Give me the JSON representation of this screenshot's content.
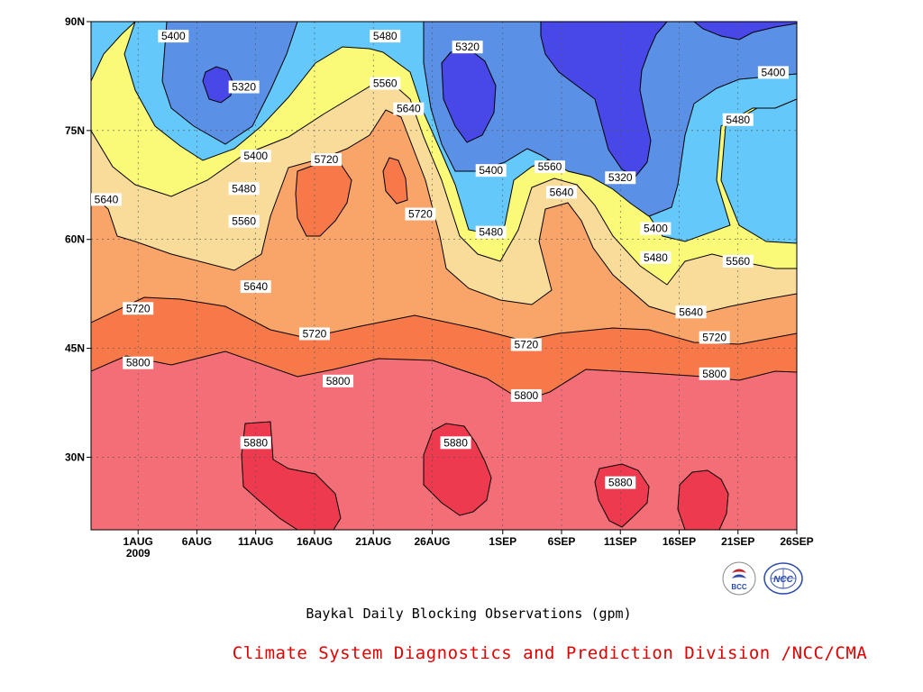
{
  "caption": {
    "title": "Baykal Daily Blocking Observations (gpm)",
    "org": "Climate System Diagnostics and Prediction Division /NCC/CMA"
  },
  "logos": [
    {
      "name": "bcc-logo",
      "text": "BCC"
    },
    {
      "name": "ncc-logo",
      "text": "NCC"
    }
  ],
  "chart_data": {
    "type": "heatmap",
    "title": "Baykal Daily Blocking Observations (gpm)",
    "xlabel": "",
    "ylabel": "",
    "x_range": [
      "2009-07-28",
      "2009-09-26"
    ],
    "y_range": [
      20,
      90
    ],
    "x_ticks": [
      {
        "date": "2009-08-01",
        "label": "1AUG",
        "sublabel": "2009"
      },
      {
        "date": "2009-08-06",
        "label": "6AUG"
      },
      {
        "date": "2009-08-11",
        "label": "11AUG"
      },
      {
        "date": "2009-08-16",
        "label": "16AUG"
      },
      {
        "date": "2009-08-21",
        "label": "21AUG"
      },
      {
        "date": "2009-08-26",
        "label": "26AUG"
      },
      {
        "date": "2009-09-01",
        "label": "1SEP"
      },
      {
        "date": "2009-09-06",
        "label": "6SEP"
      },
      {
        "date": "2009-09-11",
        "label": "11SEP"
      },
      {
        "date": "2009-09-16",
        "label": "16SEP"
      },
      {
        "date": "2009-09-21",
        "label": "21SEP"
      },
      {
        "date": "2009-09-26",
        "label": "26SEP"
      }
    ],
    "y_ticks": [
      {
        "value": 30,
        "label": "30N"
      },
      {
        "value": 45,
        "label": "45N"
      },
      {
        "value": 60,
        "label": "60N"
      },
      {
        "value": 75,
        "label": "75N"
      },
      {
        "value": 90,
        "label": "90N"
      }
    ],
    "grid": true,
    "contour_levels": [
      5320,
      5400,
      5480,
      5560,
      5640,
      5720,
      5800,
      5880
    ],
    "colors": {
      "below_5320": "#4848e8",
      "5320_5400": "#5a90e6",
      "5400_5480": "#64c8fa",
      "5480_5560": "#fafa78",
      "5560_5640": "#fadc9a",
      "5640_5720": "#f9a468",
      "5720_5800": "#f77848",
      "5800_5880": "#f46e78",
      "above_5880": "#ee3a4e"
    },
    "contour_labels": [
      {
        "date": "2009-08-04",
        "lat": 88.0,
        "text": "5400"
      },
      {
        "date": "2009-08-10",
        "lat": 81.0,
        "text": "5320"
      },
      {
        "date": "2009-08-11",
        "lat": 71.5,
        "text": "5400"
      },
      {
        "date": "2009-08-10",
        "lat": 67.0,
        "text": "5480"
      },
      {
        "date": "2009-08-10",
        "lat": 62.5,
        "text": "5560"
      },
      {
        "date": "2009-08-11",
        "lat": 53.5,
        "text": "5640"
      },
      {
        "date": "2009-07-28",
        "lat": 65.5,
        "text": "5640"
      },
      {
        "date": "2009-08-01",
        "lat": 50.5,
        "text": "5720"
      },
      {
        "date": "2009-08-01",
        "lat": 43.0,
        "text": "5800"
      },
      {
        "date": "2009-08-11",
        "lat": 32.0,
        "text": "5880"
      },
      {
        "date": "2009-08-16",
        "lat": 47.0,
        "text": "5720"
      },
      {
        "date": "2009-08-18",
        "lat": 40.5,
        "text": "5800"
      },
      {
        "date": "2009-08-17",
        "lat": 71.0,
        "text": "5720"
      },
      {
        "date": "2009-08-22",
        "lat": 88.0,
        "text": "5480"
      },
      {
        "date": "2009-08-22",
        "lat": 81.5,
        "text": "5560"
      },
      {
        "date": "2009-08-24",
        "lat": 78.0,
        "text": "5640"
      },
      {
        "date": "2009-08-25",
        "lat": 63.5,
        "text": "5720"
      },
      {
        "date": "2009-08-29",
        "lat": 86.5,
        "text": "5320"
      },
      {
        "date": "2009-08-31",
        "lat": 69.5,
        "text": "5400"
      },
      {
        "date": "2009-08-31",
        "lat": 61.0,
        "text": "5480"
      },
      {
        "date": "2009-08-28",
        "lat": 32.0,
        "text": "5880"
      },
      {
        "date": "2009-09-03",
        "lat": 45.5,
        "text": "5720"
      },
      {
        "date": "2009-09-03",
        "lat": 38.5,
        "text": "5800"
      },
      {
        "date": "2009-09-05",
        "lat": 70.0,
        "text": "5560"
      },
      {
        "date": "2009-09-06",
        "lat": 66.5,
        "text": "5640"
      },
      {
        "date": "2009-09-11",
        "lat": 68.5,
        "text": "5320"
      },
      {
        "date": "2009-09-14",
        "lat": 61.5,
        "text": "5400"
      },
      {
        "date": "2009-09-14",
        "lat": 57.5,
        "text": "5480"
      },
      {
        "date": "2009-09-11",
        "lat": 26.5,
        "text": "5880"
      },
      {
        "date": "2009-09-17",
        "lat": 50.0,
        "text": "5640"
      },
      {
        "date": "2009-09-19",
        "lat": 46.5,
        "text": "5720"
      },
      {
        "date": "2009-09-19",
        "lat": 41.5,
        "text": "5800"
      },
      {
        "date": "2009-09-21",
        "lat": 57.0,
        "text": "5560"
      },
      {
        "date": "2009-09-21",
        "lat": 76.5,
        "text": "5480"
      },
      {
        "date": "2009-09-24",
        "lat": 83.0,
        "text": "5400"
      }
    ]
  }
}
